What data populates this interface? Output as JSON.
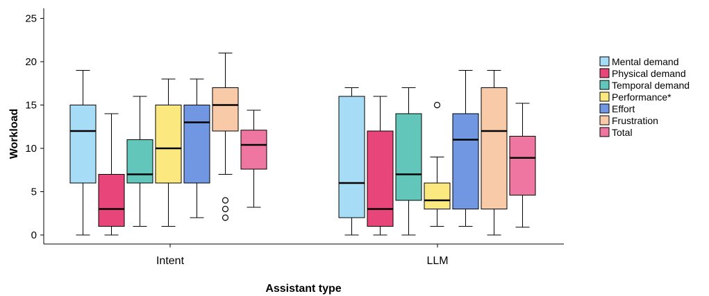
{
  "chart_data": {
    "type": "boxplot",
    "xlabel": "Assistant type",
    "ylabel": "Workload",
    "ylim": [
      -1,
      26
    ],
    "yticks": [
      0,
      5,
      10,
      15,
      20,
      25
    ],
    "legend_position": "right",
    "categories": [
      "Intent",
      "LLM"
    ],
    "series": [
      {
        "name": "Mental demand",
        "color": "#a6dcf6",
        "boxes": [
          {
            "whisker_low": 0,
            "q1": 6,
            "median": 12,
            "q3": 15,
            "whisker_high": 19,
            "outliers": []
          },
          {
            "whisker_low": 0,
            "q1": 2,
            "median": 6,
            "q3": 16,
            "whisker_high": 17,
            "outliers": []
          }
        ]
      },
      {
        "name": "Physical demand",
        "color": "#e8457a",
        "boxes": [
          {
            "whisker_low": 0,
            "q1": 1,
            "median": 3,
            "q3": 7,
            "whisker_high": 14,
            "outliers": []
          },
          {
            "whisker_low": 0,
            "q1": 1,
            "median": 3,
            "q3": 12,
            "whisker_high": 16,
            "outliers": []
          }
        ]
      },
      {
        "name": "Temporal demand",
        "color": "#62c6ba",
        "boxes": [
          {
            "whisker_low": 1,
            "q1": 6,
            "median": 7,
            "q3": 11,
            "whisker_high": 16,
            "outliers": []
          },
          {
            "whisker_low": 0,
            "q1": 4,
            "median": 7,
            "q3": 14,
            "whisker_high": 17,
            "outliers": []
          }
        ]
      },
      {
        "name": "Performance*",
        "color": "#fbe97f",
        "boxes": [
          {
            "whisker_low": 1,
            "q1": 6,
            "median": 10,
            "q3": 15,
            "whisker_high": 18,
            "outliers": []
          },
          {
            "whisker_low": 1,
            "q1": 3,
            "median": 4,
            "q3": 6,
            "whisker_high": 9,
            "outliers": [
              15
            ]
          }
        ]
      },
      {
        "name": "Effort",
        "color": "#7197e2",
        "boxes": [
          {
            "whisker_low": 2,
            "q1": 6,
            "median": 13,
            "q3": 15,
            "whisker_high": 18,
            "outliers": []
          },
          {
            "whisker_low": 1,
            "q1": 3,
            "median": 11,
            "q3": 14,
            "whisker_high": 19,
            "outliers": []
          }
        ]
      },
      {
        "name": "Frustration",
        "color": "#f9caa7",
        "boxes": [
          {
            "whisker_low": 7,
            "q1": 12,
            "median": 15,
            "q3": 17,
            "whisker_high": 21,
            "outliers": [
              2,
              3,
              4
            ]
          },
          {
            "whisker_low": 0,
            "q1": 3,
            "median": 12,
            "q3": 17,
            "whisker_high": 19,
            "outliers": []
          }
        ]
      },
      {
        "name": "Total",
        "color": "#ef76a0",
        "boxes": [
          {
            "whisker_low": 3.2,
            "q1": 7.6,
            "median": 10.4,
            "q3": 12.1,
            "whisker_high": 14.4,
            "outliers": []
          },
          {
            "whisker_low": 0.9,
            "q1": 4.6,
            "median": 8.9,
            "q3": 11.4,
            "whisker_high": 15.2,
            "outliers": []
          }
        ]
      }
    ]
  }
}
